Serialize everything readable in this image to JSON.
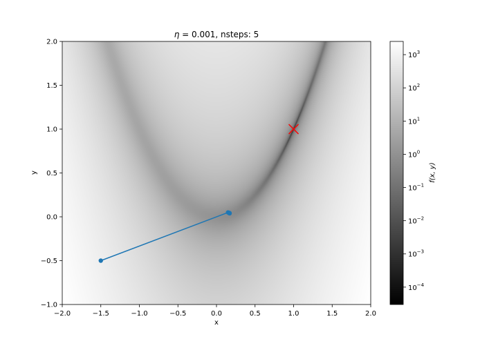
{
  "chart_data": {
    "type": "heatmap",
    "title": "η = 0.001, nsteps: 5",
    "title_eta_symbol": "η",
    "title_rest": " = 0.001, nsteps: 5",
    "xlabel": "x",
    "ylabel": "y",
    "xlim": [
      -2.0,
      2.0
    ],
    "ylim": [
      -1.0,
      2.0
    ],
    "x_ticks": [
      -2.0,
      -1.5,
      -1.0,
      -0.5,
      0.0,
      0.5,
      1.0,
      1.5,
      2.0
    ],
    "x_tick_labels": [
      "−2.0",
      "−1.5",
      "−1.0",
      "−0.5",
      "0.0",
      "0.5",
      "1.0",
      "1.5",
      "2.0"
    ],
    "y_ticks": [
      -1.0,
      -0.5,
      0.0,
      0.5,
      1.0,
      1.5,
      2.0
    ],
    "y_tick_labels": [
      "−1.0",
      "−0.5",
      "0.0",
      "0.5",
      "1.0",
      "1.5",
      "2.0"
    ],
    "function": "rosenbrock: f(x,y) = (1 - x)^2 + 100 (y - x^2)^2",
    "colormap": "gray",
    "color_scale": "log",
    "colorbar": {
      "label": "f(x, y)",
      "range": [
        3e-05,
        2500
      ],
      "tick_exponents": [
        -4,
        -3,
        -2,
        -1,
        0,
        1,
        2,
        3
      ]
    },
    "series": [
      {
        "type": "line",
        "color": "#1f77b4",
        "x": [
          -1.5,
          0.15,
          0.17,
          0.165,
          0.168,
          0.17
        ],
        "y": [
          -0.5,
          0.05,
          0.04,
          0.045,
          0.042,
          0.04
        ],
        "marker": "circle"
      }
    ],
    "annotations": [
      {
        "marker": "x",
        "color": "#ff0000",
        "x": 1.0,
        "y": 1.0
      }
    ]
  }
}
